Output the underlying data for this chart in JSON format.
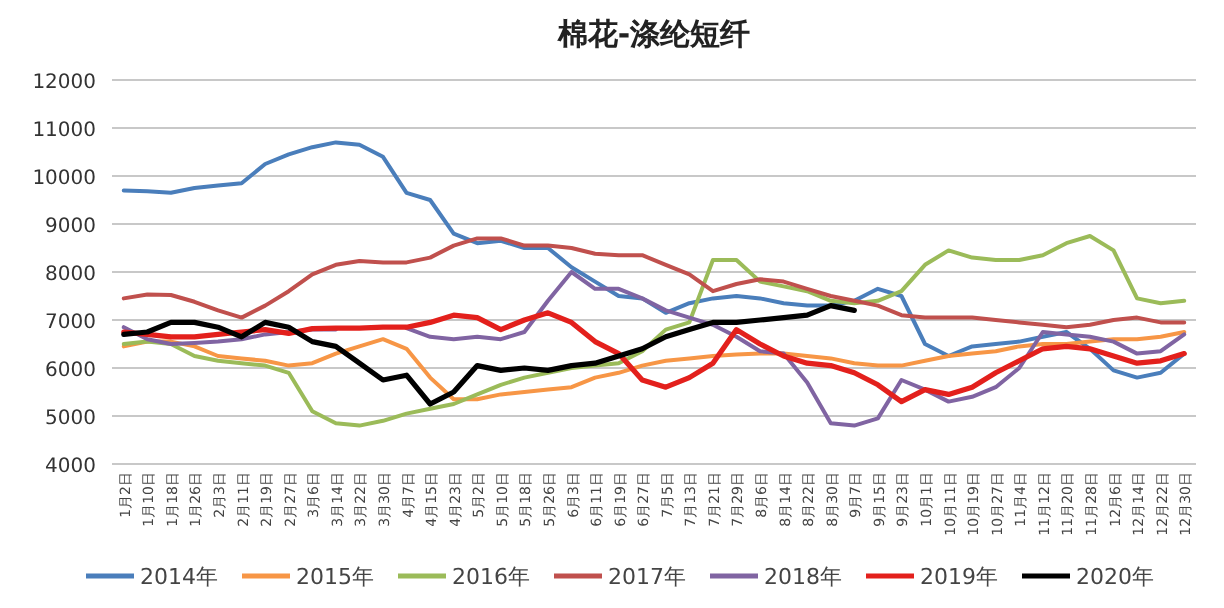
{
  "chart_data": {
    "type": "line",
    "title": "棉花-涤纶短纤",
    "categories": [
      "1月2日",
      "1月10日",
      "1月18日",
      "1月26日",
      "2月3日",
      "2月11日",
      "2月19日",
      "2月27日",
      "3月6日",
      "3月14日",
      "3月22日",
      "3月30日",
      "4月7日",
      "4月15日",
      "4月23日",
      "5月2日",
      "5月10日",
      "5月18日",
      "5月26日",
      "6月3日",
      "6月11日",
      "6月19日",
      "6月27日",
      "7月5日",
      "7月13日",
      "7月21日",
      "7月29日",
      "8月6日",
      "8月14日",
      "8月22日",
      "8月30日",
      "9月7日",
      "9月15日",
      "9月23日",
      "10月1日",
      "10月11日",
      "10月19日",
      "10月27日",
      "11月4日",
      "11月12日",
      "11月20日",
      "11月28日",
      "12月6日",
      "12月14日",
      "12月22日",
      "12月30日"
    ],
    "ylim": [
      4000,
      12000
    ],
    "yticks": [
      4000,
      5000,
      6000,
      7000,
      8000,
      9000,
      10000,
      11000,
      12000
    ],
    "grid": "y",
    "legend": "bottom",
    "marker": "none",
    "line_style": "solid",
    "series": [
      {
        "name": "2014年",
        "color": "#4a7ebb",
        "values": [
          9700,
          9680,
          9650,
          9750,
          9800,
          9850,
          10250,
          10450,
          10600,
          10700,
          10650,
          10400,
          9650,
          9500,
          8800,
          8600,
          8650,
          8500,
          8500,
          8100,
          7800,
          7500,
          7450,
          7150,
          7350,
          7450,
          7500,
          7450,
          7350,
          7300,
          7300,
          7400,
          7650,
          7500,
          6500,
          6250,
          6450,
          6500,
          6550,
          6650,
          6750,
          6400,
          5950,
          5800,
          5900,
          6300
        ]
      },
      {
        "name": "2015年",
        "color": "#f79646",
        "values": [
          6450,
          6550,
          6550,
          6450,
          6250,
          6200,
          6150,
          6050,
          6100,
          6300,
          6450,
          6600,
          6400,
          5800,
          5350,
          5350,
          5450,
          5500,
          5550,
          5600,
          5800,
          5900,
          6050,
          6150,
          6200,
          6250,
          6280,
          6300,
          6300,
          6250,
          6200,
          6100,
          6050,
          6050,
          6150,
          6250,
          6300,
          6350,
          6450,
          6500,
          6500,
          6550,
          6600,
          6600,
          6650,
          6750
        ]
      },
      {
        "name": "2016年",
        "color": "#9bbb59",
        "values": [
          6500,
          6550,
          6500,
          6250,
          6150,
          6100,
          6050,
          5900,
          5100,
          4850,
          4800,
          4900,
          5050,
          5150,
          5250,
          5450,
          5650,
          5800,
          5900,
          6000,
          6050,
          6100,
          6350,
          6800,
          6950,
          8250,
          8250,
          7800,
          7700,
          7600,
          7400,
          7350,
          7400,
          7600,
          8150,
          8450,
          8300,
          8250,
          8250,
          8350,
          8600,
          8750,
          8450,
          7450,
          7350,
          7400
        ]
      },
      {
        "name": "2017年",
        "color": "#c0504d",
        "values": [
          7450,
          7530,
          7520,
          7380,
          7200,
          7050,
          7300,
          7600,
          7950,
          8150,
          8230,
          8200,
          8200,
          8300,
          8550,
          8700,
          8700,
          8550,
          8550,
          8500,
          8380,
          8350,
          8350,
          8150,
          7950,
          7600,
          7750,
          7850,
          7800,
          7650,
          7500,
          7400,
          7300,
          7100,
          7050,
          7050,
          7050,
          7000,
          6950,
          6900,
          6850,
          6900,
          7000,
          7050,
          6950,
          6950
        ]
      },
      {
        "name": "2018年",
        "color": "#8064a2",
        "values": [
          6850,
          6600,
          6500,
          6520,
          6550,
          6600,
          6700,
          6750,
          6800,
          6800,
          null,
          null,
          6830,
          6650,
          6600,
          6650,
          6600,
          6750,
          7400,
          8000,
          7650,
          7650,
          7450,
          7200,
          7050,
          6900,
          6650,
          6350,
          6300,
          5700,
          4850,
          4800,
          4950,
          5750,
          5550,
          5300,
          5400,
          5600,
          6000,
          6750,
          6700,
          6650,
          6550,
          6300,
          6350,
          6700
        ]
      },
      {
        "name": "2019年",
        "color": "#e3201c",
        "values": [
          6750,
          6700,
          6650,
          6650,
          6700,
          6750,
          6800,
          6720,
          6820,
          6830,
          6830,
          6850,
          6850,
          6950,
          7100,
          7050,
          6800,
          7000,
          7150,
          6950,
          6550,
          6300,
          5750,
          5600,
          5800,
          6100,
          6800,
          6500,
          6250,
          6100,
          6050,
          5900,
          5650,
          5300,
          5550,
          5450,
          5600,
          5900,
          6150,
          6400,
          6450,
          6400,
          6250,
          6100,
          6150,
          6300
        ]
      },
      {
        "name": "2020年",
        "color": "#000000",
        "values": [
          6700,
          6750,
          6950,
          6950,
          6850,
          6650,
          6950,
          6850,
          6550,
          6450,
          6100,
          5750,
          5850,
          5250,
          5500,
          6050,
          5950,
          6000,
          5950,
          6050,
          6100,
          6250,
          6400,
          6650,
          6800,
          6950,
          6950,
          7000,
          7050,
          7100,
          7300,
          7200,
          null,
          null,
          null,
          null,
          null,
          null,
          null,
          null,
          null,
          null,
          null,
          null,
          null,
          null
        ]
      }
    ]
  }
}
